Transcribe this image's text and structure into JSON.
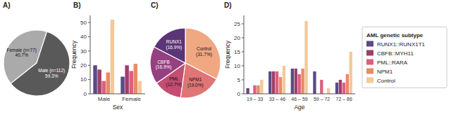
{
  "chart_data": [
    {
      "type": "pie",
      "title": "A)",
      "categories": [
        "Female (n=77)\n40.7%",
        "Male (n=112)\n59.3%"
      ],
      "values": [
        40.7,
        59.3
      ],
      "colors": [
        "#aaaaaa",
        "#595959"
      ]
    },
    {
      "type": "bar",
      "title": "B)",
      "x_label": "Sex",
      "y_label": "Frequency",
      "categories": [
        "Male",
        "Female"
      ],
      "series": [
        {
          "name": "RUNX1::RUNX1T1",
          "color": "#5b4a87",
          "values": [
            20,
            12
          ]
        },
        {
          "name": "CBFB::MYH11",
          "color": "#9e3f6b",
          "values": [
            17,
            20
          ]
        },
        {
          "name": "PML::RARA",
          "color": "#de5e7e",
          "values": [
            9,
            16
          ]
        },
        {
          "name": "NPM1",
          "color": "#e88b68",
          "values": [
            15,
            21
          ]
        },
        {
          "name": "Control",
          "color": "#f2c99a",
          "values": [
            52,
            9
          ]
        }
      ],
      "ylim": [
        0,
        55
      ],
      "yticks": [
        0,
        10,
        20,
        30,
        40,
        50
      ],
      "grid": false
    },
    {
      "type": "pie",
      "title": "C)",
      "categories": [
        "Control\n(31.7%)",
        "NPM1\n(19.0%)",
        "PML\n(12.7%)",
        "CBFB\n(16.9%)",
        "RUNX1\n(16.9%)"
      ],
      "values": [
        31.7,
        19.0,
        12.7,
        16.9,
        16.9
      ],
      "colors": [
        "#f0a883",
        "#df7575",
        "#c44d72",
        "#954080",
        "#5b3575"
      ]
    },
    {
      "type": "bar",
      "title": "D)",
      "x_label": "Age",
      "y_label": "Frequency",
      "categories": [
        "19 – 33",
        "33 – 46",
        "46 – 59",
        "59 – 72",
        "72 – 86"
      ],
      "series": [
        {
          "name": "RUNX1::RUNX1T1",
          "color": "#5b4a87",
          "values": [
            2,
            8,
            9,
            8,
            4
          ]
        },
        {
          "name": "CBFB::MYH11",
          "color": "#9e3f6b",
          "values": [
            0,
            8,
            9,
            0,
            5
          ]
        },
        {
          "name": "PML::RARA",
          "color": "#de5e7e",
          "values": [
            3,
            8,
            7,
            5,
            4
          ]
        },
        {
          "name": "NPM1",
          "color": "#e88b68",
          "values": [
            3,
            6,
            9,
            0,
            7
          ]
        },
        {
          "name": "Control",
          "color": "#f2c99a",
          "values": [
            5,
            10,
            26,
            2,
            15
          ]
        }
      ],
      "ylim": [
        0,
        28
      ],
      "yticks": [
        0,
        5,
        10,
        15,
        20,
        25
      ],
      "grid": false,
      "legend": "right",
      "legend_title": "AML genetic subtype"
    }
  ]
}
